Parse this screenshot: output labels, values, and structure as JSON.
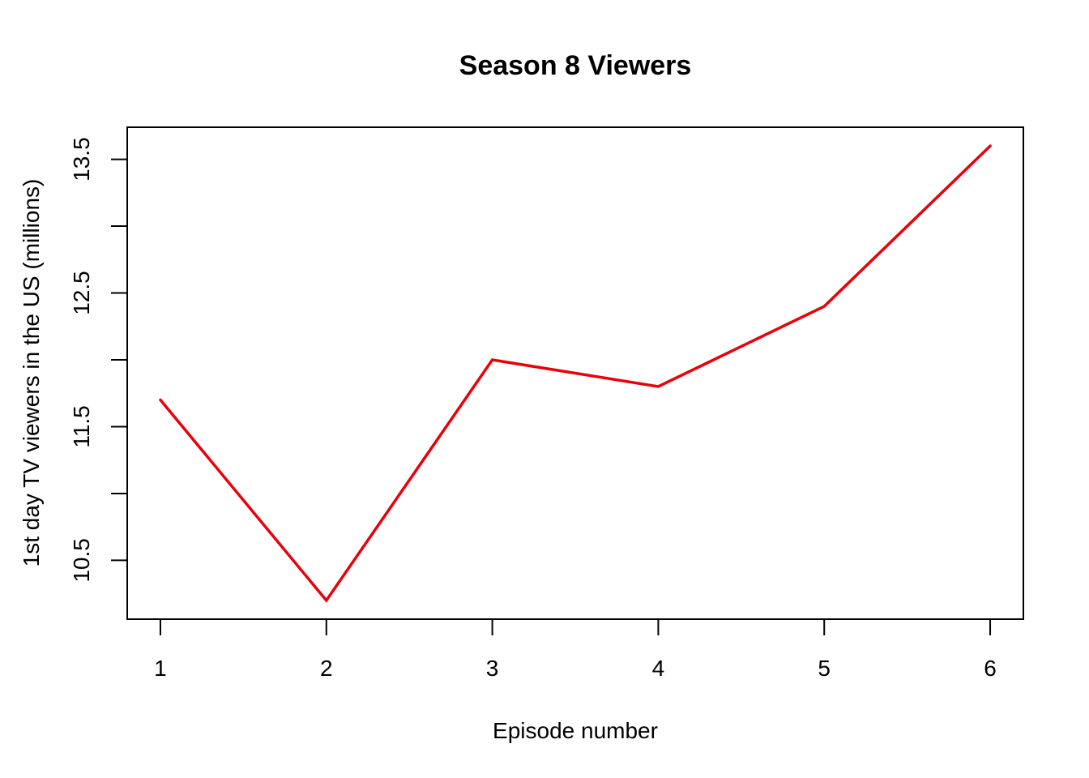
{
  "chart_data": {
    "type": "line",
    "title": "Season 8 Viewers",
    "xlabel": "Episode number",
    "ylabel": "1st day TV viewers in the US (millions)",
    "x": [
      1,
      2,
      3,
      4,
      5,
      6
    ],
    "series": [
      {
        "values": [
          11.7,
          10.2,
          12.0,
          11.8,
          12.4,
          13.6
        ],
        "color": "#e8000b"
      }
    ],
    "xlim": [
      0.8,
      6.2
    ],
    "ylim": [
      10.06,
      13.74
    ],
    "xticks": [
      "1",
      "2",
      "3",
      "4",
      "5",
      "6"
    ],
    "yticks": [
      10.5,
      11.0,
      11.5,
      12.0,
      12.5,
      13.0,
      13.5
    ],
    "yticklabels": [
      "10.5",
      "11.5",
      "12.5",
      "13.5"
    ],
    "grid": false
  }
}
